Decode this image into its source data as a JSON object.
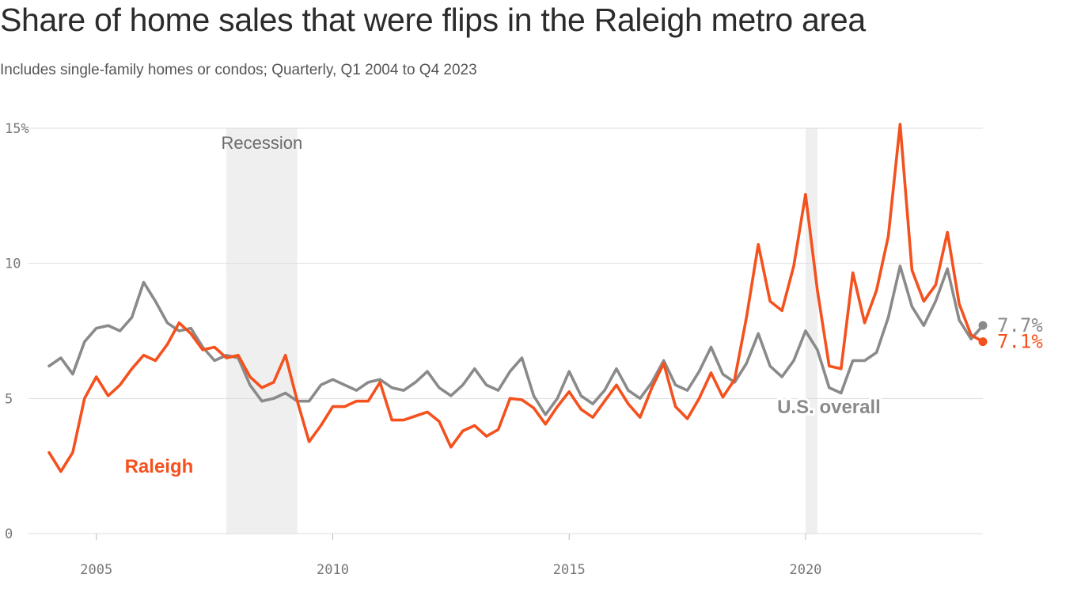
{
  "title": "Share of home sales that were flips in the Raleigh metro area",
  "subtitle": "Includes single-family homes or condos; Quarterly, Q1 2004 to Q4 2023",
  "colors": {
    "raleigh": "#f4511e",
    "us": "#8a8a8a",
    "grid": "#dddddd",
    "shade": "#efefef"
  },
  "chart_data": {
    "type": "line",
    "x_start": 2004.0,
    "x_step": 0.25,
    "ylim": [
      0,
      15
    ],
    "xlim": [
      2004,
      2023.75
    ],
    "y_ticks": [
      {
        "value": 0,
        "label": "0"
      },
      {
        "value": 5,
        "label": "5"
      },
      {
        "value": 10,
        "label": "10"
      },
      {
        "value": 15,
        "label": "15%"
      }
    ],
    "x_ticks": [
      {
        "value": 2005,
        "label": "2005"
      },
      {
        "value": 2010,
        "label": "2010"
      },
      {
        "value": 2015,
        "label": "2015"
      },
      {
        "value": 2020,
        "label": "2020"
      }
    ],
    "shaded_periods": [
      {
        "from": 2007.75,
        "to": 2009.25,
        "label": "Recession"
      },
      {
        "from": 2020.0,
        "to": 2020.25,
        "label": ""
      }
    ],
    "series": [
      {
        "name": "U.S. overall",
        "color": "#8a8a8a",
        "end_label": "7.7%",
        "values": [
          6.2,
          6.5,
          5.9,
          7.1,
          7.6,
          7.7,
          7.5,
          8.0,
          9.3,
          8.6,
          7.8,
          7.5,
          7.6,
          6.9,
          6.4,
          6.6,
          6.5,
          5.5,
          4.9,
          5.0,
          5.2,
          4.9,
          4.9,
          5.5,
          5.7,
          5.5,
          5.3,
          5.6,
          5.7,
          5.4,
          5.3,
          5.6,
          6.0,
          5.4,
          5.1,
          5.5,
          6.1,
          5.5,
          5.3,
          6.0,
          6.5,
          5.1,
          4.4,
          5.0,
          6.0,
          5.1,
          4.8,
          5.3,
          6.1,
          5.3,
          5.0,
          5.6,
          6.4,
          5.5,
          5.3,
          6.0,
          6.9,
          5.9,
          5.6,
          6.3,
          7.4,
          6.2,
          5.8,
          6.4,
          7.5,
          6.8,
          5.4,
          5.2,
          6.4,
          6.4,
          6.7,
          8.0,
          9.9,
          8.4,
          7.7,
          8.6,
          9.8,
          7.9,
          7.2,
          7.7
        ]
      },
      {
        "name": "Raleigh",
        "color": "#f4511e",
        "end_label": "7.1%",
        "values": [
          3.0,
          2.3,
          3.0,
          5.0,
          5.8,
          5.1,
          5.5,
          6.1,
          6.6,
          6.4,
          7.0,
          7.8,
          7.4,
          6.8,
          6.9,
          6.5,
          6.6,
          5.8,
          5.4,
          5.6,
          6.6,
          4.9,
          3.4,
          4.0,
          4.7,
          4.7,
          4.9,
          4.9,
          5.6,
          4.2,
          4.2,
          4.35,
          4.5,
          4.15,
          3.2,
          3.8,
          4.0,
          3.6,
          3.85,
          5.0,
          4.95,
          4.65,
          4.05,
          4.7,
          5.25,
          4.6,
          4.3,
          4.9,
          5.5,
          4.8,
          4.3,
          5.4,
          6.3,
          4.7,
          4.25,
          5.0,
          5.95,
          5.05,
          5.7,
          8.0,
          10.7,
          8.6,
          8.25,
          9.9,
          12.55,
          9.0,
          6.2,
          6.1,
          9.65,
          7.8,
          9.0,
          11.0,
          15.15,
          9.75,
          8.6,
          9.2,
          11.15,
          8.5,
          7.35,
          7.1
        ]
      }
    ]
  }
}
